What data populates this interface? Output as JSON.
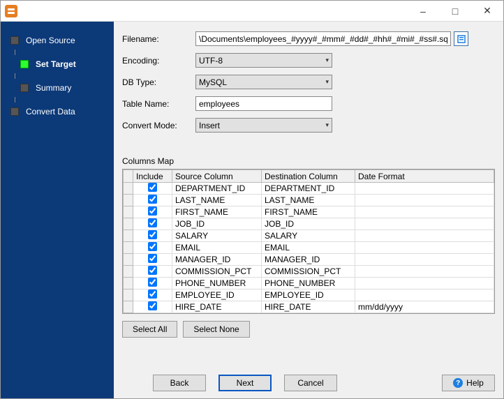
{
  "window": {
    "title": ""
  },
  "nav": {
    "items": [
      {
        "label": "Open Source",
        "key": "open-source"
      },
      {
        "label": "Set Target",
        "key": "set-target",
        "active": true
      },
      {
        "label": "Summary",
        "key": "summary"
      },
      {
        "label": "Convert Data",
        "key": "convert-data"
      }
    ]
  },
  "form": {
    "filename_label": "Filename:",
    "filename_value": "\\Documents\\employees_#yyyy#_#mm#_#dd#_#hh#_#mi#_#ss#.sql",
    "encoding_label": "Encoding:",
    "encoding_value": "UTF-8",
    "dbtype_label": "DB Type:",
    "dbtype_value": "MySQL",
    "tablename_label": "Table Name:",
    "tablename_value": "employees",
    "convertmode_label": "Convert Mode:",
    "convertmode_value": "Insert"
  },
  "columns_map": {
    "caption": "Columns Map",
    "headers": {
      "include": "Include",
      "source": "Source Column",
      "dest": "Destination Column",
      "datefmt": "Date Format"
    },
    "rows": [
      {
        "include": true,
        "source": "DEPARTMENT_ID",
        "dest": "DEPARTMENT_ID",
        "datefmt": ""
      },
      {
        "include": true,
        "source": "LAST_NAME",
        "dest": "LAST_NAME",
        "datefmt": ""
      },
      {
        "include": true,
        "source": "FIRST_NAME",
        "dest": "FIRST_NAME",
        "datefmt": ""
      },
      {
        "include": true,
        "source": "JOB_ID",
        "dest": "JOB_ID",
        "datefmt": ""
      },
      {
        "include": true,
        "source": "SALARY",
        "dest": "SALARY",
        "datefmt": ""
      },
      {
        "include": true,
        "source": "EMAIL",
        "dest": "EMAIL",
        "datefmt": ""
      },
      {
        "include": true,
        "source": "MANAGER_ID",
        "dest": "MANAGER_ID",
        "datefmt": ""
      },
      {
        "include": true,
        "source": "COMMISSION_PCT",
        "dest": "COMMISSION_PCT",
        "datefmt": ""
      },
      {
        "include": true,
        "source": "PHONE_NUMBER",
        "dest": "PHONE_NUMBER",
        "datefmt": ""
      },
      {
        "include": true,
        "source": "EMPLOYEE_ID",
        "dest": "EMPLOYEE_ID",
        "datefmt": ""
      },
      {
        "include": true,
        "source": "HIRE_DATE",
        "dest": "HIRE_DATE",
        "datefmt": "mm/dd/yyyy"
      }
    ]
  },
  "buttons": {
    "select_all": "Select All",
    "select_none": "Select None",
    "back": "Back",
    "next": "Next",
    "cancel": "Cancel",
    "help": "Help"
  },
  "colors": {
    "sidebar_bg": "#0c3978",
    "active_marker": "#2cff2c",
    "panel_bg": "#f0f0f0",
    "primary_border": "#0a57c2"
  }
}
